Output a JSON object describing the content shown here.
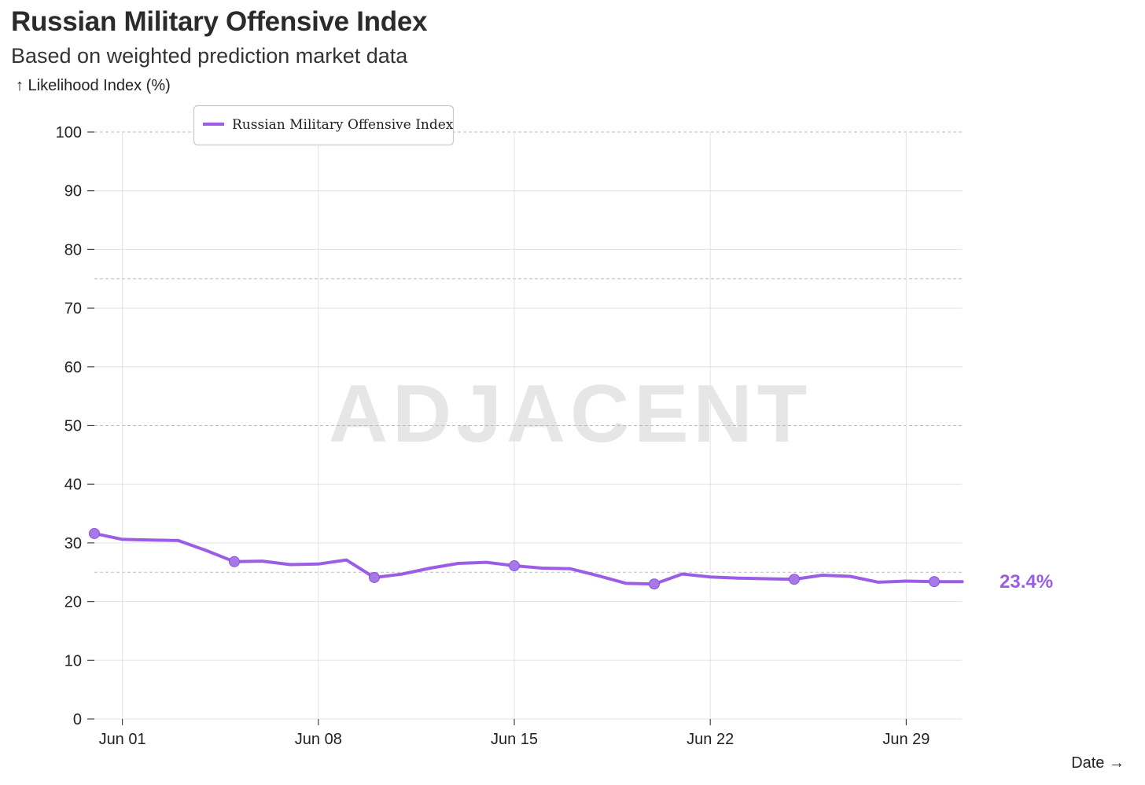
{
  "header": {
    "title": "Russian Military Offensive Index",
    "subtitle": "Based on weighted prediction market data"
  },
  "watermark": "ADJACENT",
  "current_value_label": "23.4%",
  "colors": {
    "series": "#9b5de5",
    "grid": "#e3e3e3",
    "dashed": "#bdbdbd",
    "watermark": "#e6e6e6"
  },
  "chart_data": {
    "type": "line",
    "title": "Russian Military Offensive Index",
    "subtitle": "Based on weighted prediction market data",
    "ylabel": "↑ Likelihood Index (%)",
    "xlabel": "Date →",
    "ylim": [
      0,
      100
    ],
    "yticks": [
      "0",
      "10",
      "20",
      "30",
      "40",
      "50",
      "60",
      "70",
      "80",
      "90",
      "100"
    ],
    "xticks": [
      "Jun 01",
      "Jun 08",
      "Jun 15",
      "Jun 22",
      "Jun 29"
    ],
    "dashed_reference_lines": [
      25,
      50,
      75,
      100
    ],
    "grid": true,
    "legend": "top-left",
    "series": [
      {
        "name": "Russian Military Offensive Index",
        "points": [
          {
            "date": "2024-05-31",
            "y": 31.6,
            "marker": true
          },
          {
            "date": "2024-06-01",
            "y": 30.6
          },
          {
            "date": "2024-06-02",
            "y": 30.5
          },
          {
            "date": "2024-06-03",
            "y": 30.4
          },
          {
            "date": "2024-06-04",
            "y": 28.7
          },
          {
            "date": "2024-06-05",
            "y": 26.8,
            "marker": true
          },
          {
            "date": "2024-06-06",
            "y": 26.9
          },
          {
            "date": "2024-06-07",
            "y": 26.3
          },
          {
            "date": "2024-06-08",
            "y": 26.4
          },
          {
            "date": "2024-06-09",
            "y": 27.1
          },
          {
            "date": "2024-06-10",
            "y": 24.1,
            "marker": true
          },
          {
            "date": "2024-06-11",
            "y": 24.7
          },
          {
            "date": "2024-06-12",
            "y": 25.7
          },
          {
            "date": "2024-06-13",
            "y": 26.5
          },
          {
            "date": "2024-06-14",
            "y": 26.7
          },
          {
            "date": "2024-06-15",
            "y": 26.1,
            "marker": true
          },
          {
            "date": "2024-06-16",
            "y": 25.7
          },
          {
            "date": "2024-06-17",
            "y": 25.6
          },
          {
            "date": "2024-06-18",
            "y": 24.4
          },
          {
            "date": "2024-06-19",
            "y": 23.1
          },
          {
            "date": "2024-06-20",
            "y": 23.0,
            "marker": true
          },
          {
            "date": "2024-06-21",
            "y": 24.7
          },
          {
            "date": "2024-06-22",
            "y": 24.2
          },
          {
            "date": "2024-06-23",
            "y": 24.0
          },
          {
            "date": "2024-06-24",
            "y": 23.9
          },
          {
            "date": "2024-06-25",
            "y": 23.8,
            "marker": true
          },
          {
            "date": "2024-06-26",
            "y": 24.5
          },
          {
            "date": "2024-06-27",
            "y": 24.3
          },
          {
            "date": "2024-06-28",
            "y": 23.3
          },
          {
            "date": "2024-06-29",
            "y": 23.5
          },
          {
            "date": "2024-06-30",
            "y": 23.4,
            "marker": true
          },
          {
            "date": "2024-07-01",
            "y": 23.4
          }
        ]
      }
    ]
  }
}
